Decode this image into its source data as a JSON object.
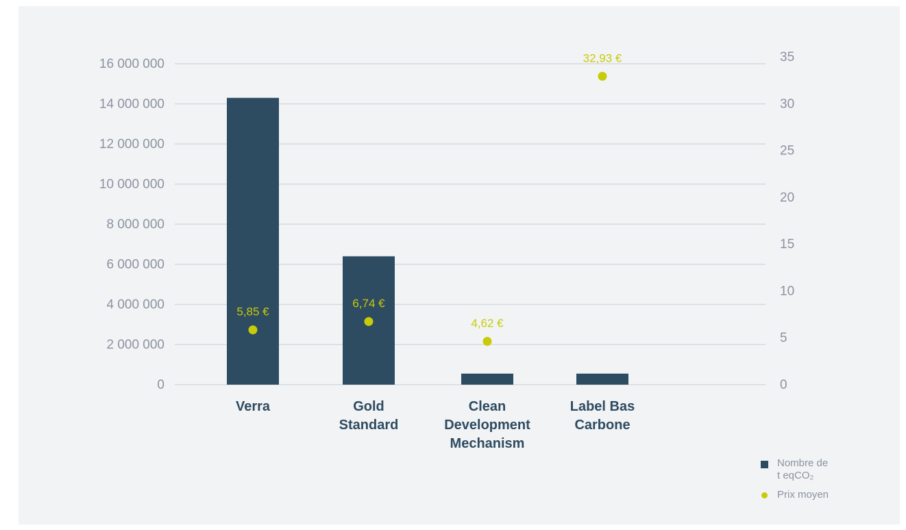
{
  "chart_data": {
    "type": "bar",
    "categories": [
      "Verra",
      "Gold Standard",
      "Clean Development Mechanism",
      "Label Bas Carbone"
    ],
    "category_lines": [
      [
        "Verra"
      ],
      [
        "Gold",
        "Standard"
      ],
      [
        "Clean",
        "Development",
        "Mechanism"
      ],
      [
        "Label Bas",
        "Carbone"
      ]
    ],
    "series": [
      {
        "name": "Nombre de t eqCO₂",
        "type": "bar",
        "axis": "left",
        "values": [
          14300000,
          6400000,
          550000,
          550000
        ],
        "color": "#2d4b61"
      },
      {
        "name": "Prix moyen",
        "type": "scatter",
        "axis": "right",
        "values": [
          5.85,
          6.74,
          4.62,
          32.93
        ],
        "labels": [
          "5,85 €",
          "6,74 €",
          "4,62 €",
          "32,93 €"
        ],
        "color": "#c8cb0a"
      }
    ],
    "y_left": {
      "ylim": [
        0,
        16000000
      ],
      "ticks": [
        0,
        2000000,
        4000000,
        6000000,
        8000000,
        10000000,
        12000000,
        14000000,
        16000000
      ],
      "tick_labels": [
        "0",
        "2 000 000",
        "4 000 000",
        "6 000 000",
        "8 000 000",
        "10 000 000",
        "12 000 000",
        "14 000 000",
        "16 000 000"
      ]
    },
    "y_right": {
      "ylim": [
        0,
        35
      ],
      "ticks": [
        0,
        5,
        10,
        15,
        20,
        25,
        30,
        35
      ],
      "tick_labels": [
        "0",
        "5",
        "10",
        "15",
        "20",
        "25",
        "30",
        "35"
      ]
    },
    "grid": true,
    "legend_position": "bottom-right"
  },
  "legend": {
    "bar_label": "Nombre de\nt eqCO₂",
    "dot_label": "Prix moyen"
  },
  "colors": {
    "bar": "#2d4b61",
    "dot": "#c8cb0a",
    "grid": "#d5d9df",
    "tick_text": "#8a93a0",
    "category_text": "#2d4b61",
    "background": "#f2f3f5"
  }
}
